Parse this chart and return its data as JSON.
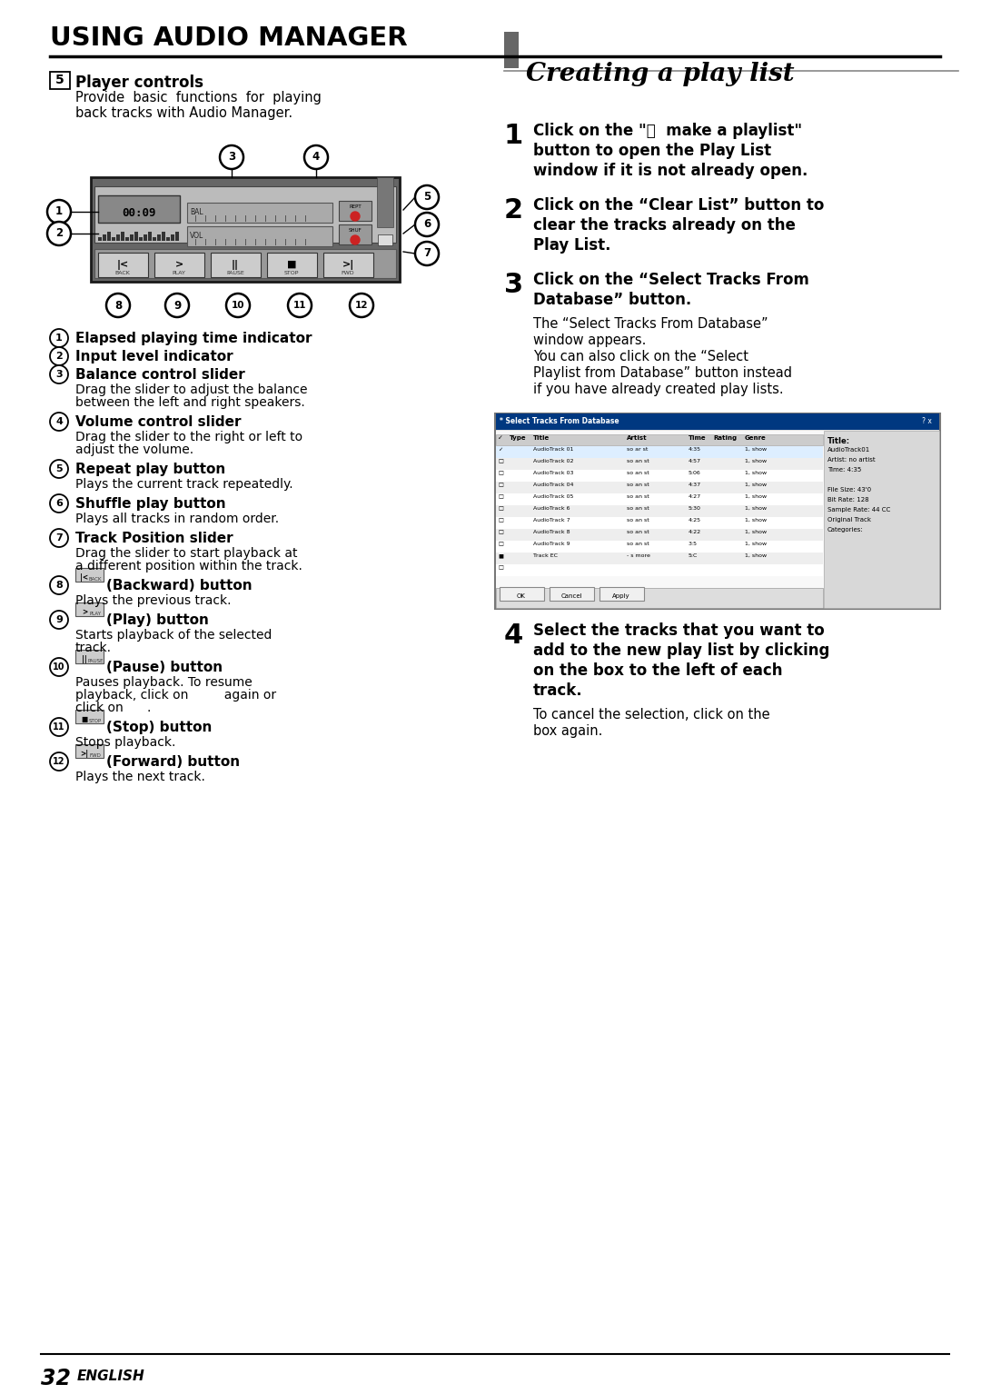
{
  "title": "USING AUDIO MANAGER",
  "background_color": "#ffffff",
  "page_number": "32",
  "page_lang": "ENGLISH",
  "section_title": "Creating a play list",
  "left_header_num": "5",
  "left_header_text": "Player controls",
  "left_header_desc1": "Provide  basic  functions  for  playing",
  "left_header_desc2": "back tracks with Audio Manager.",
  "items": [
    {
      "num": "1",
      "bold": "Elapsed playing time indicator",
      "desc": "",
      "has_icon": false
    },
    {
      "num": "2",
      "bold": "Input level indicator",
      "desc": "",
      "has_icon": false
    },
    {
      "num": "3",
      "bold": "Balance control slider",
      "desc": "Drag the slider to adjust the balance\nbetween the left and right speakers.",
      "has_icon": false
    },
    {
      "num": "4",
      "bold": "Volume control slider",
      "desc": "Drag the slider to the right or left to\nadjust the volume.",
      "has_icon": false
    },
    {
      "num": "5",
      "bold": "Repeat play button",
      "desc": "Plays the current track repeatedly.",
      "has_icon": false
    },
    {
      "num": "6",
      "bold": "Shuffle play button",
      "desc": "Plays all tracks in random order.",
      "has_icon": false
    },
    {
      "num": "7",
      "bold": "Track Position slider",
      "desc": "Drag the slider to start playback at\na different position within the track.",
      "has_icon": false
    },
    {
      "num": "8",
      "icon_label": "BACK",
      "bold": "(Backward) button",
      "desc": "Plays the previous track.",
      "has_icon": true
    },
    {
      "num": "9",
      "icon_label": "PLAY",
      "bold": "(Play) button",
      "desc": "Starts playback of the selected\ntrack.",
      "has_icon": true
    },
    {
      "num": "10",
      "icon_label": "PAUSE",
      "bold": "(Pause) button",
      "desc": "Pauses playback. To resume\nplayback, click on         again or\nclick on      .",
      "has_icon": true
    },
    {
      "num": "11",
      "icon_label": "STOP",
      "bold": "(Stop) button",
      "desc": "Stops playback.",
      "has_icon": true
    },
    {
      "num": "12",
      "icon_label": "FWD",
      "bold": "(Forward) button",
      "desc": "Plays the next track.",
      "has_icon": true
    }
  ],
  "steps": [
    {
      "num": "1",
      "bold_lines": [
        "Click on the \"Ⓜ  make a playlist\"",
        "button to open the Play List",
        "window if it is not already open."
      ],
      "sub_lines": []
    },
    {
      "num": "2",
      "bold_lines": [
        "Click on the “Clear List” button to",
        "clear the tracks already on the",
        "Play List."
      ],
      "sub_lines": []
    },
    {
      "num": "3",
      "bold_lines": [
        "Click on the “Select Tracks From",
        "Database” button."
      ],
      "sub_lines": [
        "The “Select Tracks From Database”",
        "window appears.",
        "You can also click on the “Select",
        "Playlist from Database” button instead",
        "if you have already created play lists."
      ]
    },
    {
      "num": "4",
      "bold_lines": [
        "Select the tracks that you want to",
        "add to the new play list by clicking",
        "on the box to the left of each",
        "track."
      ],
      "sub_lines": [
        "To cancel the selection, click on the",
        "box again."
      ]
    }
  ]
}
